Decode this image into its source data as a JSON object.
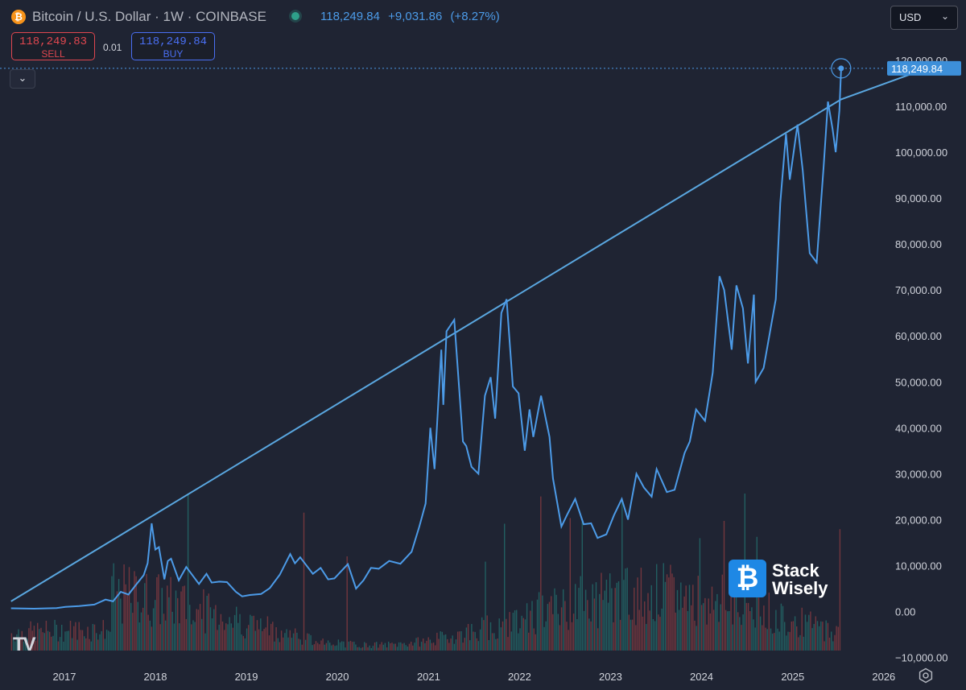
{
  "header": {
    "coin_icon": "₿",
    "title": "Bitcoin / U.S. Dollar · 1W · COINBASE",
    "last_price": "118,249.84",
    "change": "+9,031.86",
    "change_pct": "(+8.27%)"
  },
  "trade": {
    "sell_price": "118,249.83",
    "sell_label": "SELL",
    "spread": "0.01",
    "buy_price": "118,249.84",
    "buy_label": "BUY",
    "collapse_icon": "⌄"
  },
  "currency": {
    "value": "USD",
    "chevron": "⌄"
  },
  "brand": {
    "badge": "₿",
    "name_line1": "Stack",
    "name_line2": "Wisely"
  },
  "logo_text": "TV",
  "colors": {
    "background": "#1f2433",
    "price_line": "#4c9be8",
    "trendline": "#5aa7e0",
    "vol_up": "#26a69a",
    "vol_down": "#ef5350",
    "axis_text": "#d1d4dc",
    "sell": "#e0474f",
    "buy": "#4a6ff3"
  },
  "chart_data": {
    "type": "line",
    "symbol": "BTCUSD",
    "interval": "1W",
    "yaxis_ticks": [
      "120,000.00",
      "110,000.00",
      "100,000.00",
      "90,000.00",
      "80,000.00",
      "70,000.00",
      "60,000.00",
      "50,000.00",
      "40,000.00",
      "30,000.00",
      "20,000.00",
      "10,000.00",
      "0.00",
      "−10,000.00"
    ],
    "ylim": [
      -10000,
      120000
    ],
    "xaxis_ticks": [
      "2017",
      "2018",
      "2019",
      "2020",
      "2021",
      "2022",
      "2023",
      "2024",
      "2025",
      "2026"
    ],
    "xlim": [
      "2016-06-01",
      "2026-08-01"
    ],
    "last_price_label": "118,249.84",
    "last_price": 118249.84,
    "series": [
      {
        "points": [
          [
            "2016-06-01",
            700
          ],
          [
            "2016-09-01",
            610
          ],
          [
            "2016-12-01",
            760
          ],
          [
            "2017-01-05",
            1000
          ],
          [
            "2017-03-01",
            1200
          ],
          [
            "2017-05-01",
            1500
          ],
          [
            "2017-06-15",
            2600
          ],
          [
            "2017-07-15",
            2200
          ],
          [
            "2017-08-15",
            4300
          ],
          [
            "2017-09-15",
            3700
          ],
          [
            "2017-10-15",
            5800
          ],
          [
            "2017-11-15",
            7900
          ],
          [
            "2017-12-01",
            10500
          ],
          [
            "2017-12-17",
            19200
          ],
          [
            "2018-01-01",
            13500
          ],
          [
            "2018-01-15",
            14000
          ],
          [
            "2018-02-06",
            7000
          ],
          [
            "2018-02-20",
            11000
          ],
          [
            "2018-03-05",
            11500
          ],
          [
            "2018-04-05",
            6800
          ],
          [
            "2018-05-05",
            9700
          ],
          [
            "2018-06-25",
            6000
          ],
          [
            "2018-07-25",
            8200
          ],
          [
            "2018-08-15",
            6300
          ],
          [
            "2018-09-15",
            6500
          ],
          [
            "2018-10-15",
            6400
          ],
          [
            "2018-11-20",
            4300
          ],
          [
            "2018-12-15",
            3300
          ],
          [
            "2019-01-15",
            3600
          ],
          [
            "2019-03-01",
            3800
          ],
          [
            "2019-04-05",
            5100
          ],
          [
            "2019-05-15",
            8000
          ],
          [
            "2019-06-26",
            12500
          ],
          [
            "2019-07-15",
            10500
          ],
          [
            "2019-08-05",
            11800
          ],
          [
            "2019-09-25",
            8200
          ],
          [
            "2019-10-26",
            9500
          ],
          [
            "2019-11-25",
            7000
          ],
          [
            "2019-12-20",
            7200
          ],
          [
            "2020-02-12",
            10300
          ],
          [
            "2020-03-16",
            5000
          ],
          [
            "2020-04-15",
            6800
          ],
          [
            "2020-05-15",
            9500
          ],
          [
            "2020-06-15",
            9300
          ],
          [
            "2020-07-27",
            11000
          ],
          [
            "2020-09-10",
            10400
          ],
          [
            "2020-10-25",
            13000
          ],
          [
            "2020-11-25",
            18500
          ],
          [
            "2020-12-20",
            23500
          ],
          [
            "2021-01-08",
            40000
          ],
          [
            "2021-01-25",
            31000
          ],
          [
            "2021-02-21",
            57000
          ],
          [
            "2021-03-01",
            45000
          ],
          [
            "2021-03-14",
            61000
          ],
          [
            "2021-04-14",
            63500
          ],
          [
            "2021-05-19",
            37000
          ],
          [
            "2021-06-01",
            36000
          ],
          [
            "2021-06-22",
            31500
          ],
          [
            "2021-07-20",
            30000
          ],
          [
            "2021-08-15",
            47000
          ],
          [
            "2021-09-07",
            51000
          ],
          [
            "2021-09-25",
            42000
          ],
          [
            "2021-10-20",
            65000
          ],
          [
            "2021-11-10",
            68000
          ],
          [
            "2021-12-05",
            49000
          ],
          [
            "2021-12-28",
            47500
          ],
          [
            "2022-01-22",
            35000
          ],
          [
            "2022-02-10",
            44000
          ],
          [
            "2022-02-25",
            38000
          ],
          [
            "2022-03-28",
            47000
          ],
          [
            "2022-05-01",
            38000
          ],
          [
            "2022-05-15",
            29000
          ],
          [
            "2022-06-18",
            18500
          ],
          [
            "2022-07-10",
            21000
          ],
          [
            "2022-08-12",
            24500
          ],
          [
            "2022-09-15",
            19000
          ],
          [
            "2022-10-15",
            19200
          ],
          [
            "2022-11-10",
            16000
          ],
          [
            "2022-12-15",
            16800
          ],
          [
            "2023-01-15",
            21000
          ],
          [
            "2023-02-15",
            24500
          ],
          [
            "2023-03-12",
            20000
          ],
          [
            "2023-04-15",
            30000
          ],
          [
            "2023-05-15",
            27000
          ],
          [
            "2023-06-15",
            25000
          ],
          [
            "2023-07-05",
            31000
          ],
          [
            "2023-08-15",
            26000
          ],
          [
            "2023-09-15",
            26500
          ],
          [
            "2023-10-25",
            34500
          ],
          [
            "2023-11-15",
            37000
          ],
          [
            "2023-12-10",
            44000
          ],
          [
            "2024-01-15",
            41500
          ],
          [
            "2024-02-15",
            52000
          ],
          [
            "2024-03-13",
            73000
          ],
          [
            "2024-04-01",
            70000
          ],
          [
            "2024-05-01",
            57000
          ],
          [
            "2024-05-20",
            71000
          ],
          [
            "2024-06-15",
            66000
          ],
          [
            "2024-07-05",
            54000
          ],
          [
            "2024-07-29",
            69000
          ],
          [
            "2024-08-05",
            50000
          ],
          [
            "2024-09-06",
            53000
          ],
          [
            "2024-10-25",
            68000
          ],
          [
            "2024-11-12",
            89000
          ],
          [
            "2024-12-05",
            104000
          ],
          [
            "2024-12-20",
            94000
          ],
          [
            "2025-01-20",
            106000
          ],
          [
            "2025-02-10",
            96000
          ],
          [
            "2025-03-10",
            78000
          ],
          [
            "2025-04-07",
            76000
          ],
          [
            "2025-05-05",
            97000
          ],
          [
            "2025-05-22",
            111000
          ],
          [
            "2025-06-10",
            105000
          ],
          [
            "2025-06-22",
            100000
          ],
          [
            "2025-07-07",
            109000
          ],
          [
            "2025-07-14",
            118249.84
          ]
        ]
      },
      {
        "points": [
          [
            "2016-06-01",
            2200
          ],
          [
            "2025-07-14",
            111500
          ],
          [
            "2026-07-01",
            118400
          ]
        ]
      }
    ],
    "volume": {
      "values_unit": "relative",
      "count": 480
    },
    "grid": false,
    "legend": "none"
  }
}
